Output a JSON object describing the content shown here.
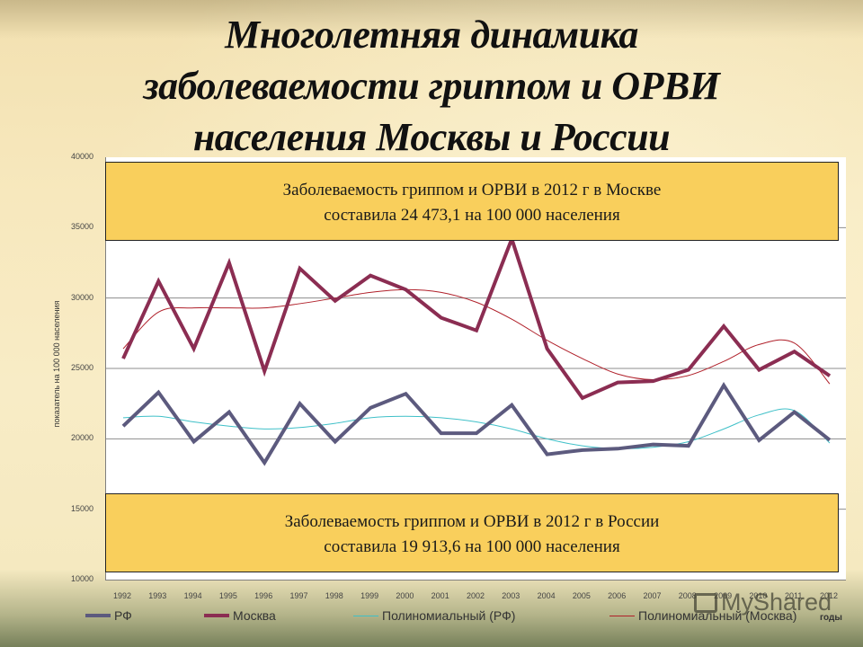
{
  "slide": {
    "title_lines": [
      "Многолетняя динамика",
      "заболеваемости гриппом и ОРВИ",
      "населения Москвы и России"
    ],
    "callout_moscow": {
      "line1": "Заболеваемость гриппом и ОРВИ в 2012 г в Москве",
      "line2": "составила 24 473,1 на 100 000 населения"
    },
    "callout_russia": {
      "line1": "Заболеваемость гриппом и ОРВИ в 2012 г в России",
      "line2": "составила 19 913,6 на 100 000 населения"
    },
    "watermark": "MyShared"
  },
  "colors": {
    "rf": "#5c5a7e",
    "moscow": "#8b2d52",
    "poly_rf": "#3fc0c8",
    "poly_moscow": "#b0202a",
    "callout_fill": "#f9cf5c",
    "gridline": "#8c8c8c"
  },
  "chart_data": {
    "type": "line",
    "title": "Многолетняя динамика заболеваемости гриппом и ОРВИ населения Москвы и России",
    "xlabel": "годы",
    "ylabel": "показатель на 100 000 населения",
    "ylim": [
      10000,
      40000
    ],
    "yticks": [
      "40000",
      "35000",
      "30000",
      "25000",
      "20000",
      "15000",
      "10000"
    ],
    "grid": true,
    "legend_position": "bottom",
    "categories": [
      "1992",
      "1993",
      "1994",
      "1995",
      "1996",
      "1997",
      "1998",
      "1999",
      "2000",
      "2001",
      "2002",
      "2003",
      "2004",
      "2005",
      "2006",
      "2007",
      "2008",
      "2009",
      "2010",
      "2011",
      "2012"
    ],
    "series": [
      {
        "name": "РФ",
        "values": [
          20900,
          23300,
          19800,
          21900,
          18300,
          22500,
          19800,
          22200,
          23200,
          20400,
          20400,
          22400,
          18900,
          19200,
          19300,
          19600,
          19500,
          23800,
          19900,
          21900,
          19913.6
        ]
      },
      {
        "name": "Москва",
        "values": [
          25700,
          31200,
          26400,
          32500,
          24800,
          32100,
          29800,
          31600,
          30600,
          28600,
          27700,
          34200,
          26400,
          22900,
          24000,
          24100,
          24900,
          28000,
          24900,
          26200,
          24473.1
        ]
      },
      {
        "name": "Полиномиальный (РФ)",
        "values": [
          21500,
          21600,
          21200,
          20900,
          20700,
          20800,
          21100,
          21500,
          21600,
          21500,
          21200,
          20700,
          20000,
          19500,
          19300,
          19400,
          19800,
          20700,
          21700,
          22000,
          19700
        ]
      },
      {
        "name": "Полиномиальный (Москва)",
        "values": [
          26400,
          29000,
          29300,
          29300,
          29300,
          29600,
          30000,
          30400,
          30600,
          30400,
          29700,
          28500,
          27000,
          25700,
          24600,
          24200,
          24500,
          25500,
          26700,
          26800,
          23900
        ]
      }
    ],
    "legend": [
      "РФ",
      "Москва",
      "Полиномиальный (РФ)",
      "Полиномиальный (Москва)"
    ],
    "annotations": [
      "Заболеваемость гриппом и ОРВИ в 2012 г в Москве составила 24 473,1 на 100 000 населения",
      "Заболеваемость гриппом и ОРВИ в 2012 г в России составила 19 913,6 на 100 000 населения"
    ]
  }
}
